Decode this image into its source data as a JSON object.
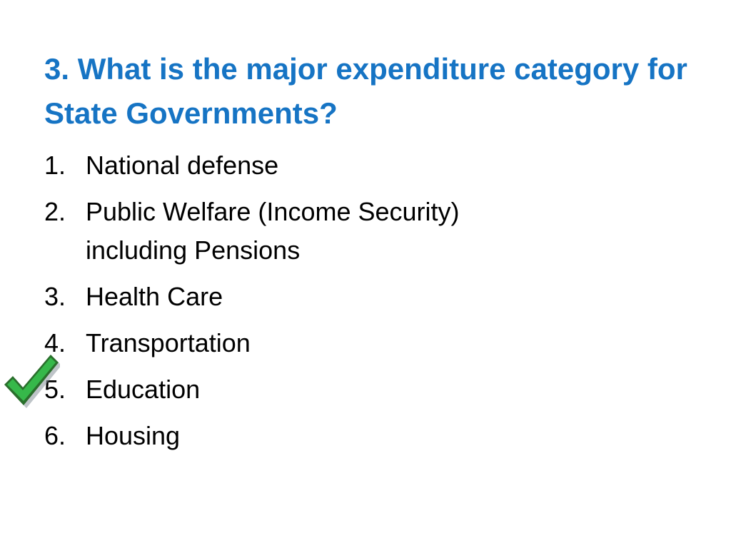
{
  "slide": {
    "question": "3. What is the major expenditure category for State Governments?",
    "options": [
      {
        "number": "1.",
        "text": "National defense"
      },
      {
        "number": "2.",
        "text": "Public Welfare (Income Security) including Pensions"
      },
      {
        "number": "3.",
        "text": "Health Care"
      },
      {
        "number": "4.",
        "text": "Transportation"
      },
      {
        "number": "5.",
        "text": "Education"
      },
      {
        "number": "6.",
        "text": "Housing"
      }
    ],
    "correct_answer_marker": {
      "icon": "check-mark-icon",
      "color": "#36b84a",
      "outline_color": "#2a6f2c"
    },
    "colors": {
      "title": "#1674c4",
      "body": "#000000",
      "background": "#ffffff"
    }
  }
}
